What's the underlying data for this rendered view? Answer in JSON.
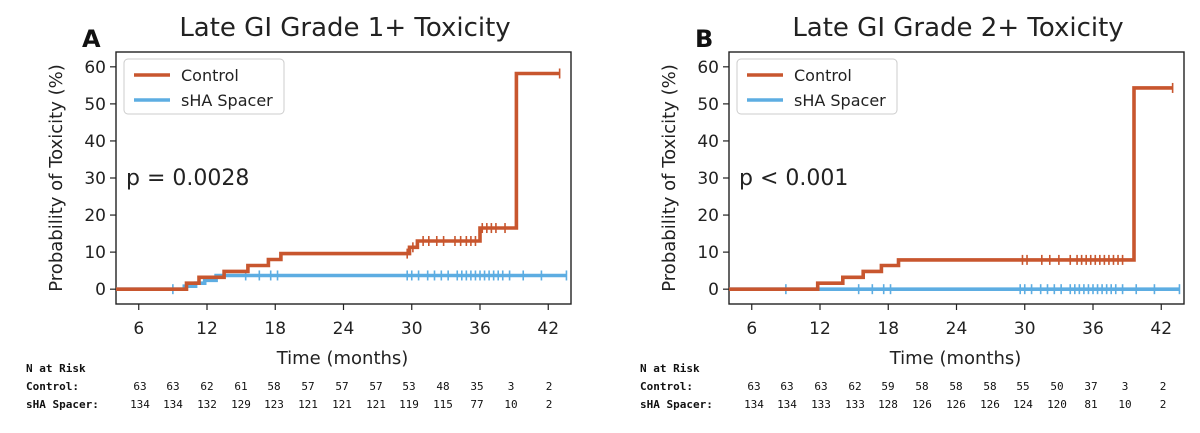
{
  "colors": {
    "control": "#c8562e",
    "spacer": "#5dade2"
  },
  "chart_data": [
    {
      "type": "line",
      "panel_label": "A",
      "title": "Late GI Grade 1+ Toxicity",
      "xlabel": "Time (months)",
      "ylabel": "Probability of Toxicity (%)",
      "xlim": [
        4,
        44
      ],
      "ylim": [
        -4,
        64
      ],
      "xticks": [
        6,
        12,
        18,
        24,
        30,
        36,
        42
      ],
      "yticks": [
        0,
        10,
        20,
        30,
        40,
        50,
        60
      ],
      "annotation": "p = 0.0028",
      "legend": {
        "placement": "top-left",
        "entries": [
          "Control",
          "sHA Spacer"
        ]
      },
      "series": [
        {
          "name": "Control",
          "color_key": "control",
          "steps": [
            [
              4,
              0
            ],
            [
              10.2,
              0
            ],
            [
              10.2,
              1.6
            ],
            [
              11.3,
              1.6
            ],
            [
              11.3,
              3.2
            ],
            [
              13.5,
              3.2
            ],
            [
              13.5,
              4.8
            ],
            [
              15.6,
              4.8
            ],
            [
              15.6,
              6.4
            ],
            [
              17.4,
              6.4
            ],
            [
              17.4,
              8.0
            ],
            [
              18.5,
              8.0
            ],
            [
              18.5,
              9.6
            ],
            [
              29.8,
              9.6
            ],
            [
              29.8,
              11.3
            ],
            [
              30.5,
              11.3
            ],
            [
              30.5,
              13.0
            ],
            [
              36.0,
              13.0
            ],
            [
              36.0,
              16.5
            ],
            [
              39.2,
              16.5
            ],
            [
              39.2,
              58.2
            ],
            [
              43.0,
              58.2
            ]
          ],
          "censor_x": [
            29.6,
            30.1,
            31.0,
            31.5,
            32.2,
            32.8,
            33.8,
            34.3,
            34.8,
            35.2,
            35.6,
            36.2,
            36.6,
            37.0,
            37.4,
            38.2,
            43.0
          ]
        },
        {
          "name": "sHA Spacer",
          "color_key": "spacer",
          "steps": [
            [
              4,
              0
            ],
            [
              10.0,
              0
            ],
            [
              10.0,
              0.8
            ],
            [
              11.0,
              0.8
            ],
            [
              11.0,
              1.6
            ],
            [
              11.8,
              1.6
            ],
            [
              11.8,
              2.4
            ],
            [
              12.8,
              2.4
            ],
            [
              12.8,
              3.7
            ],
            [
              43.6,
              3.7
            ]
          ],
          "censor_x": [
            9.0,
            15.4,
            16.6,
            17.6,
            18.2,
            29.6,
            30.0,
            30.6,
            31.4,
            32.0,
            32.6,
            33.2,
            34.0,
            34.4,
            34.8,
            35.2,
            35.6,
            36.0,
            36.4,
            36.8,
            37.2,
            37.6,
            38.0,
            38.6,
            39.8,
            41.4,
            43.6
          ]
        }
      ],
      "risk_table": {
        "header": "N at Risk",
        "rows": [
          {
            "label": "Control:",
            "values": [
              "63",
              "63",
              "62",
              "61",
              "58",
              "57",
              "57",
              "57",
              "53",
              "48",
              "35",
              "3",
              "2"
            ]
          },
          {
            "label": "sHA Spacer:",
            "values": [
              "134",
              "134",
              "132",
              "129",
              "123",
              "121",
              "121",
              "121",
              "119",
              "115",
              "77",
              "10",
              "2"
            ]
          }
        ]
      }
    },
    {
      "type": "line",
      "panel_label": "B",
      "title": "Late GI Grade 2+ Toxicity",
      "xlabel": "Time (months)",
      "ylabel": "Probability of Toxicity (%)",
      "xlim": [
        4,
        44
      ],
      "ylim": [
        -4,
        64
      ],
      "xticks": [
        6,
        12,
        18,
        24,
        30,
        36,
        42
      ],
      "yticks": [
        0,
        10,
        20,
        30,
        40,
        50,
        60
      ],
      "annotation": "p < 0.001",
      "legend": {
        "placement": "top-left",
        "entries": [
          "Control",
          "sHA Spacer"
        ]
      },
      "series": [
        {
          "name": "Control",
          "color_key": "control",
          "steps": [
            [
              4,
              0
            ],
            [
              11.8,
              0
            ],
            [
              11.8,
              1.6
            ],
            [
              14.0,
              1.6
            ],
            [
              14.0,
              3.2
            ],
            [
              15.8,
              3.2
            ],
            [
              15.8,
              4.8
            ],
            [
              17.4,
              4.8
            ],
            [
              17.4,
              6.4
            ],
            [
              18.9,
              6.4
            ],
            [
              18.9,
              7.9
            ],
            [
              39.6,
              7.9
            ],
            [
              39.6,
              54.3
            ],
            [
              43.0,
              54.3
            ]
          ],
          "censor_x": [
            29.8,
            30.2,
            31.5,
            32.2,
            33.0,
            34.0,
            34.6,
            35.0,
            35.4,
            35.8,
            36.2,
            36.6,
            37.0,
            37.4,
            37.8,
            38.2,
            38.6,
            43.0
          ]
        },
        {
          "name": "sHA Spacer",
          "color_key": "spacer",
          "steps": [
            [
              4,
              0
            ],
            [
              43.6,
              0
            ]
          ],
          "censor_x": [
            9.0,
            15.4,
            16.6,
            17.6,
            18.2,
            29.6,
            30.0,
            30.6,
            31.4,
            32.0,
            32.6,
            33.2,
            34.0,
            34.4,
            34.8,
            35.2,
            35.6,
            36.0,
            36.4,
            36.8,
            37.2,
            37.6,
            38.0,
            38.6,
            39.8,
            41.4,
            43.6
          ]
        }
      ],
      "risk_table": {
        "header": "N at Risk",
        "rows": [
          {
            "label": "Control:",
            "values": [
              "63",
              "63",
              "63",
              "62",
              "59",
              "58",
              "58",
              "58",
              "55",
              "50",
              "37",
              "3",
              "2"
            ]
          },
          {
            "label": "sHA Spacer:",
            "values": [
              "134",
              "134",
              "133",
              "133",
              "128",
              "126",
              "126",
              "126",
              "124",
              "120",
              "81",
              "10",
              "2"
            ]
          }
        ]
      }
    }
  ]
}
